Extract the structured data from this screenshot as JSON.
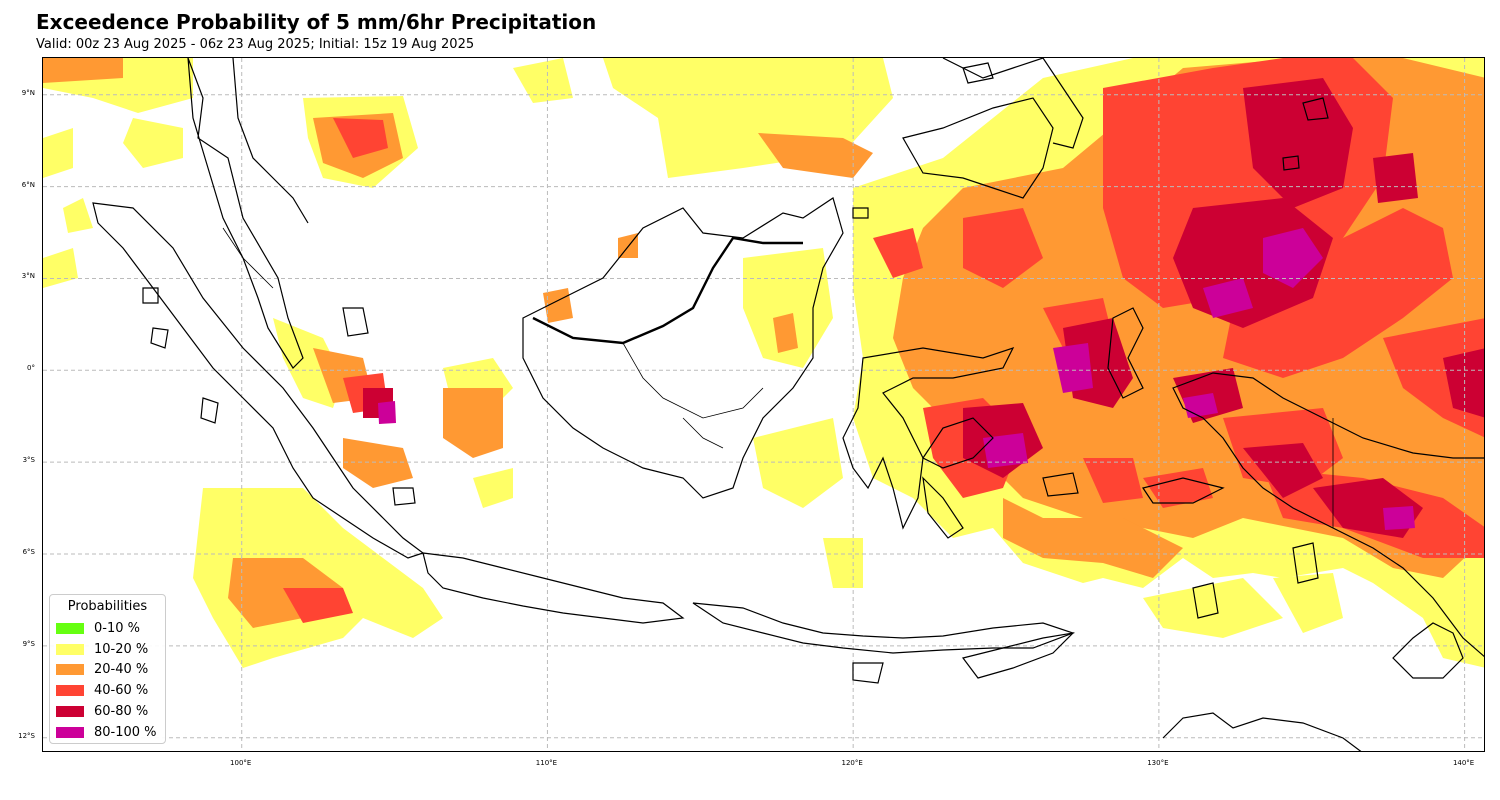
{
  "title": "Exceedence Probability of 5 mm/6hr Precipitation",
  "subtitle": "Valid: 00z 23 Aug 2025 - 06z 23 Aug 2025; Initial: 15z 19 Aug 2025",
  "map": {
    "region": "Indonesia",
    "extent": {
      "lon_min": 93.5,
      "lon_max": 140.7,
      "lat_min": -12.5,
      "lat_max": 10.2
    },
    "gridlines": "dashed",
    "lat_ticks": [
      {
        "value": 9,
        "label": "9°N"
      },
      {
        "value": 6,
        "label": "6°N"
      },
      {
        "value": 3,
        "label": "3°N"
      },
      {
        "value": 0,
        "label": "0°"
      },
      {
        "value": -3,
        "label": "3°S"
      },
      {
        "value": -6,
        "label": "6°S"
      },
      {
        "value": -9,
        "label": "9°S"
      },
      {
        "value": -12,
        "label": "12°S"
      }
    ],
    "lon_ticks": [
      {
        "value": 100,
        "label": "100°E"
      },
      {
        "value": 110,
        "label": "110°E"
      },
      {
        "value": 120,
        "label": "120°E"
      },
      {
        "value": 130,
        "label": "130°E"
      },
      {
        "value": 140,
        "label": "140°E"
      }
    ]
  },
  "legend": {
    "title": "Probabilities",
    "placement": "bottom-left",
    "items": [
      {
        "label": "0-10 %",
        "color": "#66ff11"
      },
      {
        "label": "10-20 %",
        "color": "#ffff66"
      },
      {
        "label": "20-40 %",
        "color": "#ff9933"
      },
      {
        "label": "40-60 %",
        "color": "#ff4433"
      },
      {
        "label": "60-80 %",
        "color": "#cc0033"
      },
      {
        "label": "80-100 %",
        "color": "#cc0099"
      }
    ]
  },
  "colors": {
    "yellow": "#ffff66",
    "orange": "#ff9933",
    "red": "#ff4433",
    "crimson": "#cc0033",
    "magenta": "#cc0099",
    "coastline": "#000000",
    "gridline": "#bbbbbb"
  }
}
